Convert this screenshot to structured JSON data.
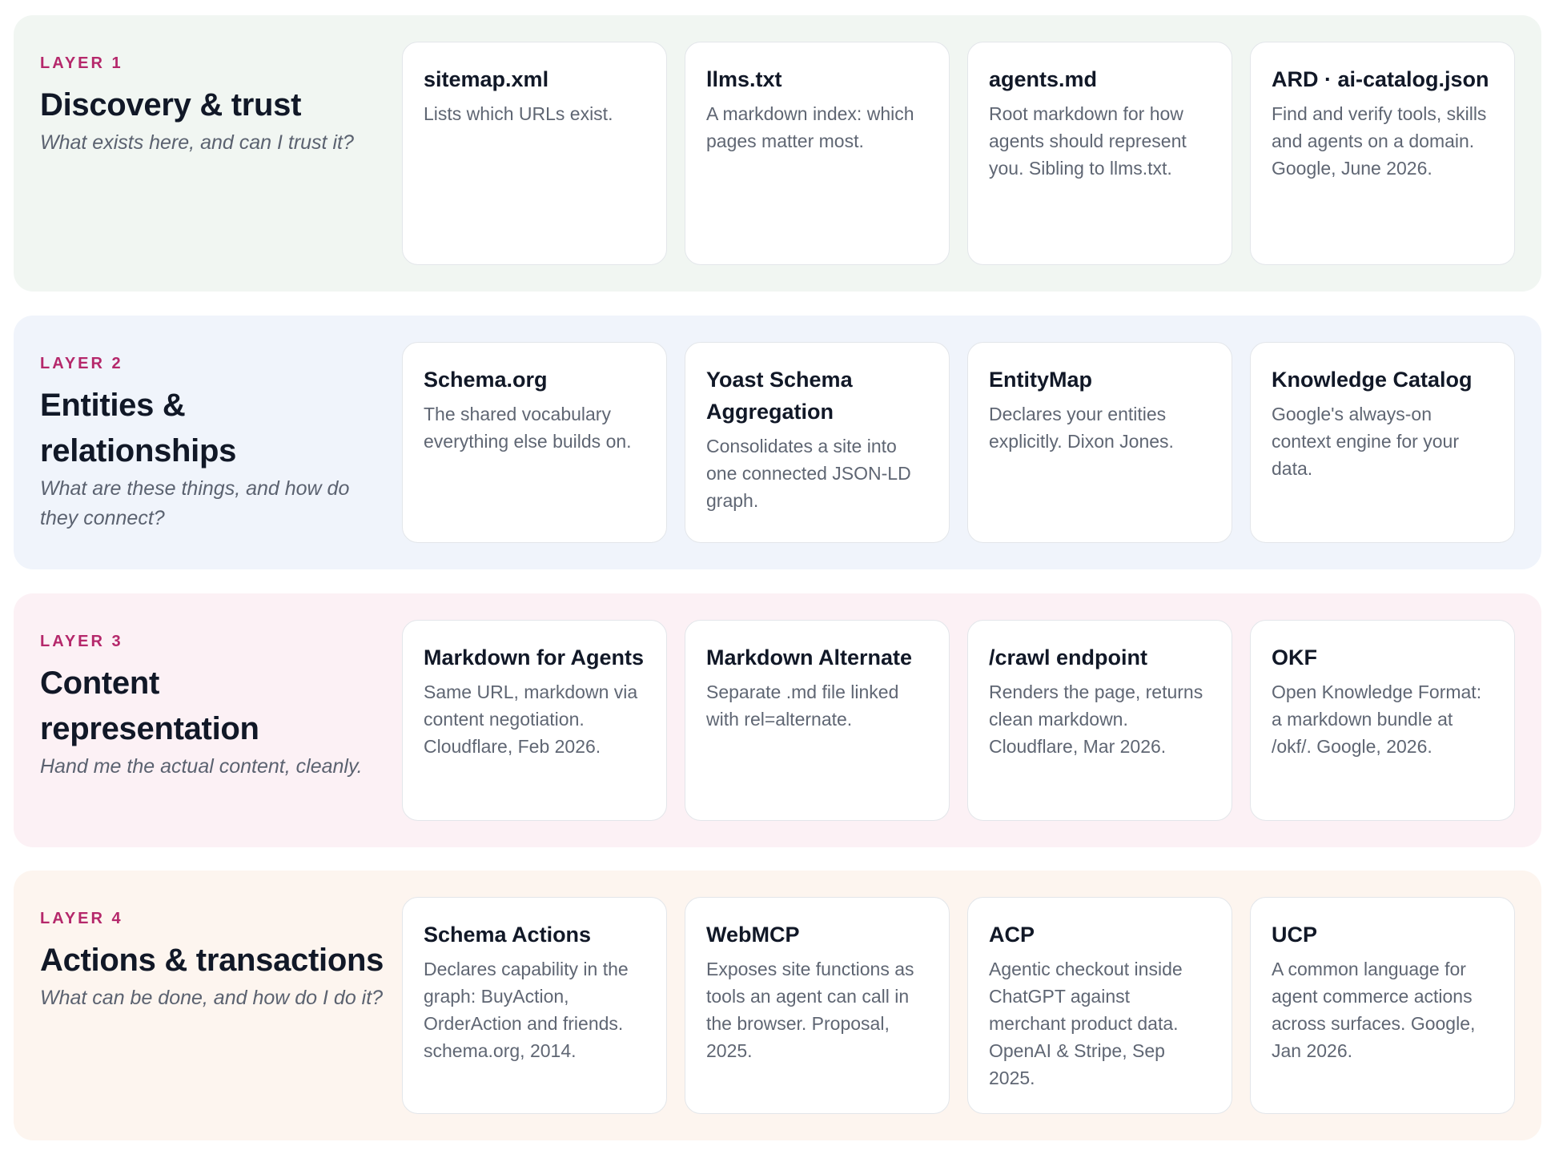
{
  "layers": [
    {
      "label": "LAYER 1",
      "title": "Discovery & trust",
      "subtitle": "What exists here, and can I trust it?",
      "cards": [
        {
          "title": "sitemap.xml",
          "text": "Lists which URLs exist."
        },
        {
          "title": "llms.txt",
          "text": "A markdown index: which pages matter most."
        },
        {
          "title": "agents.md",
          "text": "Root markdown for how agents should represent you. Sibling to llms.txt."
        },
        {
          "title": "ARD · ai-catalog.json",
          "text": "Find and verify tools, skills and agents on a domain. Google, June 2026."
        }
      ]
    },
    {
      "label": "LAYER 2",
      "title": "Entities & relationships",
      "subtitle": "What are these things, and how do they connect?",
      "cards": [
        {
          "title": "Schema.org",
          "text": "The shared vocabulary everything else builds on."
        },
        {
          "title": "Yoast Schema Aggregation",
          "text": "Consolidates a site into one connected JSON-LD graph."
        },
        {
          "title": "EntityMap",
          "text": "Declares your entities explicitly. Dixon Jones."
        },
        {
          "title": "Knowledge Catalog",
          "text": "Google's always-on context engine for your data."
        }
      ]
    },
    {
      "label": "LAYER 3",
      "title": "Content representation",
      "subtitle": "Hand me the actual content, cleanly.",
      "cards": [
        {
          "title": "Markdown for Agents",
          "text": "Same URL, markdown via content negotiation. Cloudflare, Feb 2026."
        },
        {
          "title": "Markdown Alternate",
          "text": "Separate .md file linked with rel=alternate."
        },
        {
          "title": "/crawl endpoint",
          "text": "Renders the page, returns clean markdown. Cloudflare, Mar 2026."
        },
        {
          "title": "OKF",
          "text": "Open Knowledge Format: a markdown bundle at /okf/. Google, 2026."
        }
      ]
    },
    {
      "label": "LAYER 4",
      "title": "Actions & transactions",
      "subtitle": "What can be done, and how do I do it?",
      "cards": [
        {
          "title": "Schema Actions",
          "text": "Declares capability in the graph: BuyAction, OrderAction and friends. schema.org, 2014."
        },
        {
          "title": "WebMCP",
          "text": "Exposes site functions as tools an agent can call in the browser. Proposal, 2025."
        },
        {
          "title": "ACP",
          "text": "Agentic checkout inside ChatGPT against merchant product data. OpenAI & Stripe, Sep 2025."
        },
        {
          "title": "UCP",
          "text": "A common language for agent commerce actions across surfaces. Google, Jan 2026."
        }
      ]
    }
  ]
}
